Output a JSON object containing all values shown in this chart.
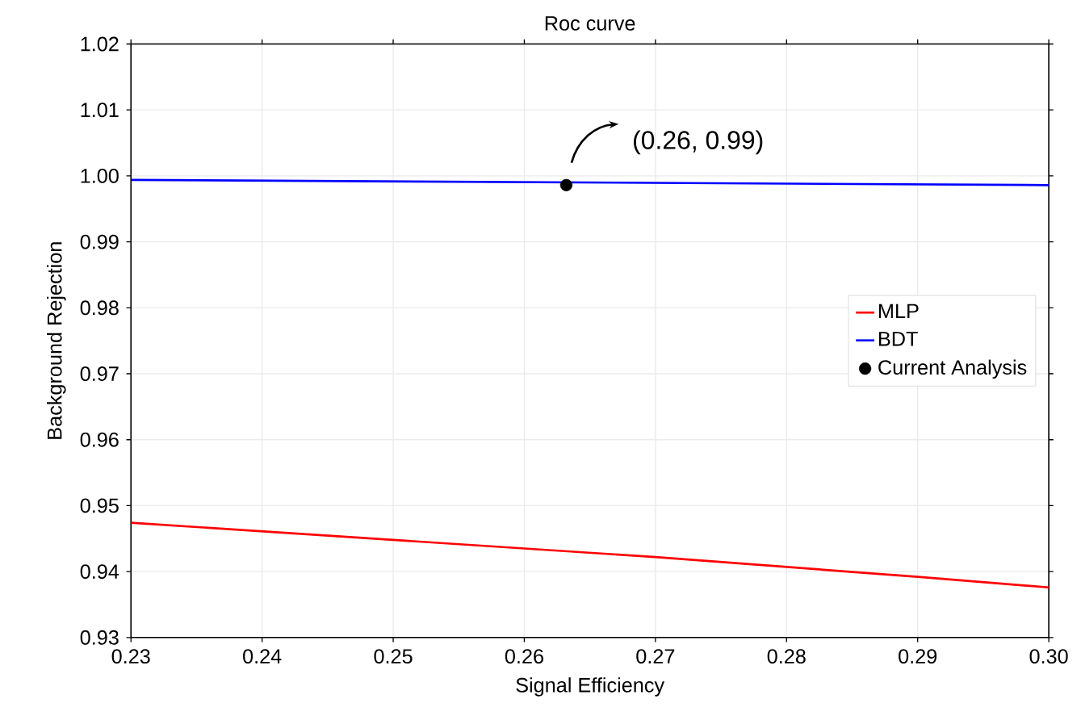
{
  "chart_data": {
    "type": "line",
    "title": "Roc curve",
    "xlabel": "Signal Efficiency",
    "ylabel": "Background Rejection",
    "xlim": [
      0.23,
      0.3
    ],
    "xticks": [
      0.23,
      0.24,
      0.25,
      0.26,
      0.27,
      0.28,
      0.29,
      {
        "value": 0.3,
        "label": "0.30"
      }
    ],
    "ylim": [
      0.93,
      1.02
    ],
    "yticks": [
      0.93,
      0.94,
      0.95,
      0.96,
      0.97,
      0.98,
      0.99,
      {
        "value": 1,
        "label": "1.00"
      },
      1.01,
      1.02
    ],
    "grid": true,
    "legend": "right",
    "series": [
      {
        "name": "MLP",
        "color": "#ff0000",
        "x": [
          0.23,
          0.25,
          0.27,
          0.29,
          0.3
        ],
        "values": [
          0.9474,
          0.9448,
          0.9422,
          0.9392,
          0.9376
        ]
      },
      {
        "name": "BDT",
        "color": "#0000ff",
        "x": [
          0.23,
          0.3
        ],
        "values": [
          0.9994,
          0.9986
        ]
      },
      {
        "name": "Current Analysis",
        "color": "#000000",
        "type": "scatter",
        "marker": "circle",
        "x": [
          0.2632
        ],
        "values": [
          0.9986
        ]
      }
    ],
    "annotations": [
      "(0.26, 0.99)"
    ]
  }
}
